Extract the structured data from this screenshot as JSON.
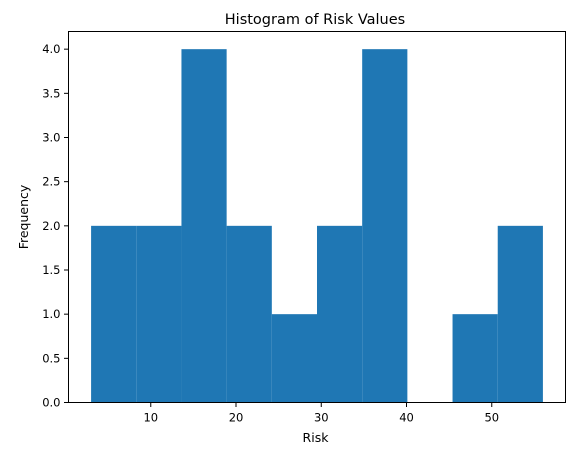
{
  "chart_data": {
    "type": "bar",
    "subtype": "histogram",
    "title": "Histogram of Risk Values",
    "xlabel": "Risk",
    "ylabel": "Frequency",
    "bins": [
      {
        "start": 3.0,
        "end": 8.3,
        "count": 2
      },
      {
        "start": 8.3,
        "end": 13.6,
        "count": 2
      },
      {
        "start": 13.6,
        "end": 18.9,
        "count": 4
      },
      {
        "start": 18.9,
        "end": 24.2,
        "count": 2
      },
      {
        "start": 24.2,
        "end": 29.5,
        "count": 1
      },
      {
        "start": 29.5,
        "end": 34.8,
        "count": 2
      },
      {
        "start": 34.8,
        "end": 40.1,
        "count": 4
      },
      {
        "start": 40.1,
        "end": 45.4,
        "count": 0
      },
      {
        "start": 45.4,
        "end": 50.7,
        "count": 1
      },
      {
        "start": 50.7,
        "end": 56.0,
        "count": 2
      }
    ],
    "xlim": [
      0.35,
      58.65
    ],
    "ylim": [
      0,
      4.2
    ],
    "xticks": [
      10,
      20,
      30,
      40,
      50
    ],
    "xtick_labels": [
      "10",
      "20",
      "30",
      "40",
      "50"
    ],
    "yticks": [
      0,
      0.5,
      1,
      1.5,
      2,
      2.5,
      3,
      3.5,
      4
    ],
    "ytick_labels": [
      "0.0",
      "0.5",
      "1.0",
      "1.5",
      "2.0",
      "2.5",
      "3.0",
      "3.5",
      "4.0"
    ],
    "bar_color": "#1f77b4",
    "grid": false,
    "legend": false
  }
}
